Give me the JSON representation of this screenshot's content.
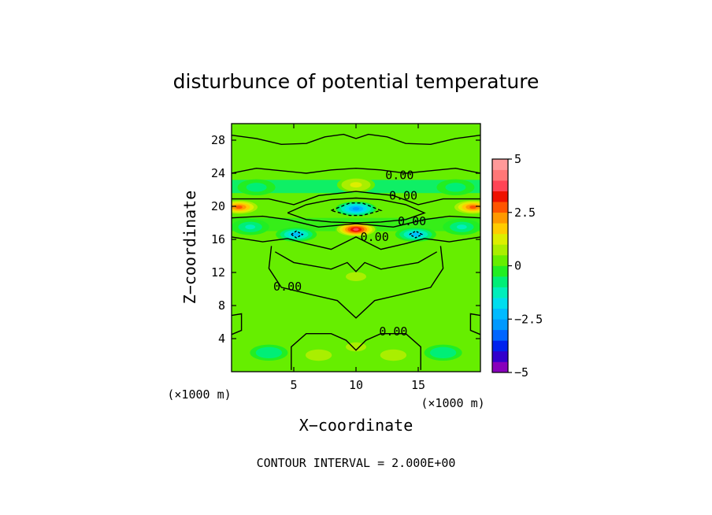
{
  "chart_data": {
    "type": "heatmap",
    "title": "disturbunce of potential temperature",
    "xlabel": "X−coordinate",
    "ylabel": "Z−coordinate",
    "x_unit": "(×1000 m)",
    "y_unit": "(×1000 m)",
    "xlim": [
      0,
      20
    ],
    "ylim": [
      0,
      30
    ],
    "x_ticks": [
      5,
      10,
      15
    ],
    "y_ticks": [
      4,
      8,
      12,
      16,
      20,
      24,
      28
    ],
    "colorbar": {
      "range": [
        -5,
        5
      ],
      "ticks": [
        "5",
        "2.5",
        "0",
        "−2.5",
        "−5"
      ],
      "colors": [
        "#8800bb",
        "#3300cc",
        "#0022ee",
        "#0066ff",
        "#0099ff",
        "#00bbff",
        "#00ddee",
        "#00eebb",
        "#00ee77",
        "#22ee22",
        "#66ee00",
        "#aaee00",
        "#ddee00",
        "#ffcc00",
        "#ff9900",
        "#ff5500",
        "#ee1100",
        "#ff4455",
        "#ff7777",
        "#ff9999"
      ]
    },
    "contour_labels": [
      "0.00",
      "0.00",
      "0.00",
      "0.00",
      "0.00",
      "0.00"
    ],
    "annotation": "CONTOUR INTERVAL = 2.000E+00",
    "features": [
      {
        "x": 10.0,
        "z": 19.7,
        "value": -2.6
      },
      {
        "x": 10.0,
        "z": 17.2,
        "value": 3.6
      },
      {
        "x": 5.2,
        "z": 16.6,
        "value": -2.2
      },
      {
        "x": 14.8,
        "z": 16.6,
        "value": -2.2
      },
      {
        "x": 0.6,
        "z": 19.9,
        "value": 2.6
      },
      {
        "x": 19.4,
        "z": 19.9,
        "value": 2.6
      },
      {
        "x": 2.0,
        "z": 22.3,
        "value": -1.0
      },
      {
        "x": 18.0,
        "z": 22.3,
        "value": -1.0
      },
      {
        "x": 10.0,
        "z": 22.6,
        "value": 1.0
      },
      {
        "x": 10.0,
        "z": 3.0,
        "value": 0.6
      },
      {
        "x": 7.0,
        "z": 2.0,
        "value": 0.8
      },
      {
        "x": 13.0,
        "z": 2.0,
        "value": 0.8
      },
      {
        "x": 3.0,
        "z": 2.3,
        "value": -0.8
      },
      {
        "x": 17.0,
        "z": 2.3,
        "value": -0.8
      },
      {
        "x": 10.0,
        "z": 11.5,
        "value": 0.6
      },
      {
        "x": 1.5,
        "z": 17.5,
        "value": -1.2
      },
      {
        "x": 18.5,
        "z": 17.5,
        "value": -1.2
      }
    ]
  }
}
